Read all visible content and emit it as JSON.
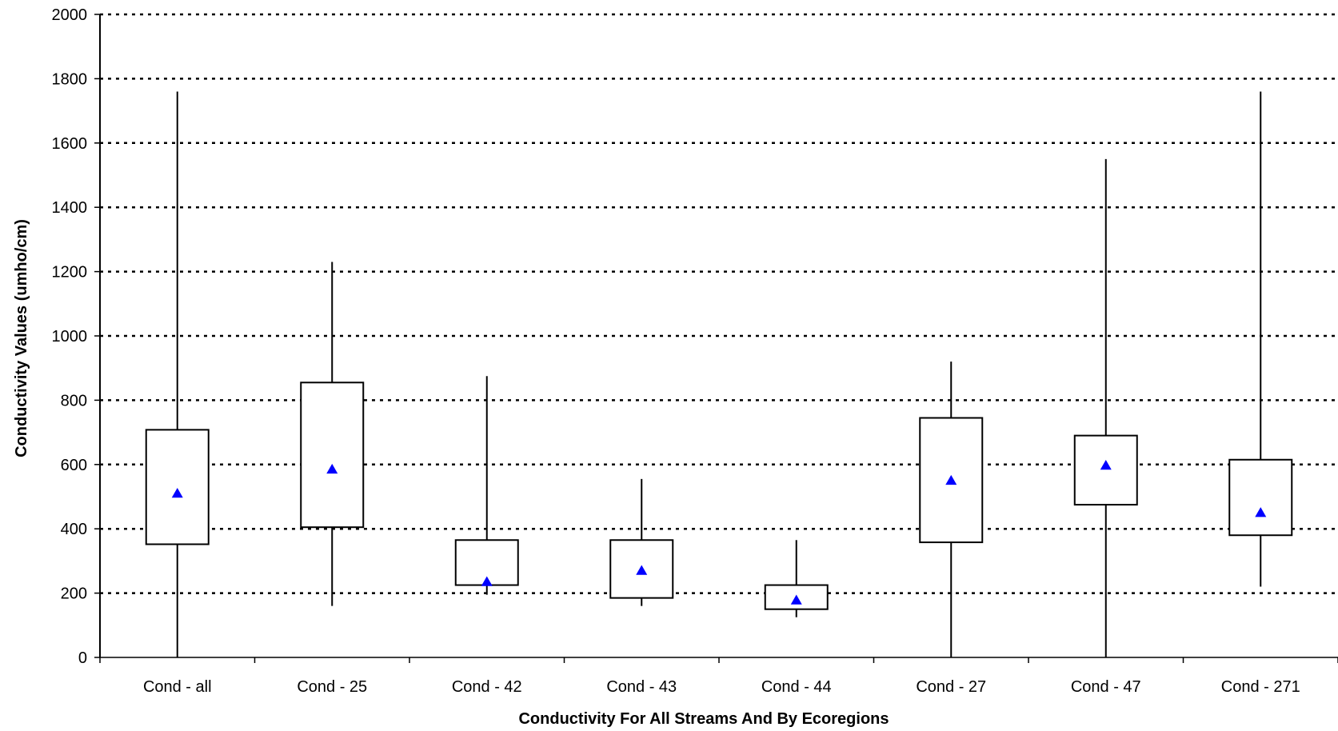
{
  "chart_data": {
    "type": "boxplot",
    "title": "",
    "xlabel": "Conductivity For All Streams And By Ecoregions",
    "ylabel": "Conductivity Values (umho/cm)",
    "ylim": [
      0,
      2000
    ],
    "yticks": [
      0,
      200,
      400,
      600,
      800,
      1000,
      1200,
      1400,
      1600,
      1800,
      2000
    ],
    "grid": true,
    "grid_style": "dotted",
    "marker_color": "#0000ff",
    "categories": [
      "Cond - all",
      "Cond - 25",
      "Cond - 42",
      "Cond - 43",
      "Cond - 44",
      "Cond - 27",
      "Cond - 47",
      "Cond - 271"
    ],
    "boxes": [
      {
        "min": 0,
        "q1": 352,
        "q3": 708,
        "max": 1760,
        "mean": 510
      },
      {
        "min": 160,
        "q1": 405,
        "q3": 855,
        "max": 1230,
        "mean": 585
      },
      {
        "min": 195,
        "q1": 225,
        "q3": 365,
        "max": 875,
        "mean": 235
      },
      {
        "min": 160,
        "q1": 185,
        "q3": 365,
        "max": 555,
        "mean": 270
      },
      {
        "min": 125,
        "q1": 150,
        "q3": 225,
        "max": 365,
        "mean": 178
      },
      {
        "min": 0,
        "q1": 358,
        "q3": 745,
        "max": 920,
        "mean": 550
      },
      {
        "min": 0,
        "q1": 475,
        "q3": 690,
        "max": 1550,
        "mean": 597
      },
      {
        "min": 220,
        "q1": 380,
        "q3": 615,
        "max": 1760,
        "mean": 450
      }
    ]
  }
}
